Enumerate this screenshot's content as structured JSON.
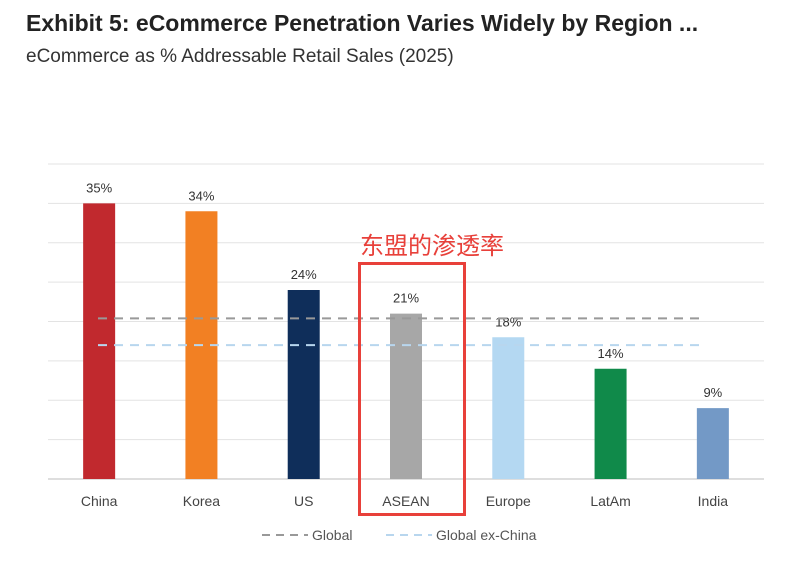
{
  "header": {
    "title": "Exhibit 5: eCommerce Penetration Varies Widely by Region ...",
    "subtitle": "eCommerce as % Addressable Retail Sales (2025)"
  },
  "annotation": {
    "label": "东盟的渗透率"
  },
  "chart_data": {
    "type": "bar",
    "categories": [
      "China",
      "Korea",
      "US",
      "ASEAN",
      "Europe",
      "LatAm",
      "India"
    ],
    "values": [
      35,
      34,
      24,
      21,
      18,
      14,
      9
    ],
    "value_labels": [
      "35%",
      "34%",
      "24%",
      "21%",
      "18%",
      "14%",
      "9%"
    ],
    "bar_colors": [
      "#c1292e",
      "#f28023",
      "#0f2e5a",
      "#a7a7a7",
      "#b4d8f2",
      "#108a4a",
      "#7399c6"
    ],
    "ylim": [
      0,
      40
    ],
    "grid": true,
    "reference_lines": [
      {
        "name": "Global",
        "value": 20.4,
        "color": "#999999"
      },
      {
        "name": "Global ex-China",
        "value": 17,
        "color": "#b8d6ee"
      }
    ],
    "legend": {
      "position": "bottom",
      "entries": [
        "Global",
        "Global ex-China"
      ]
    }
  }
}
